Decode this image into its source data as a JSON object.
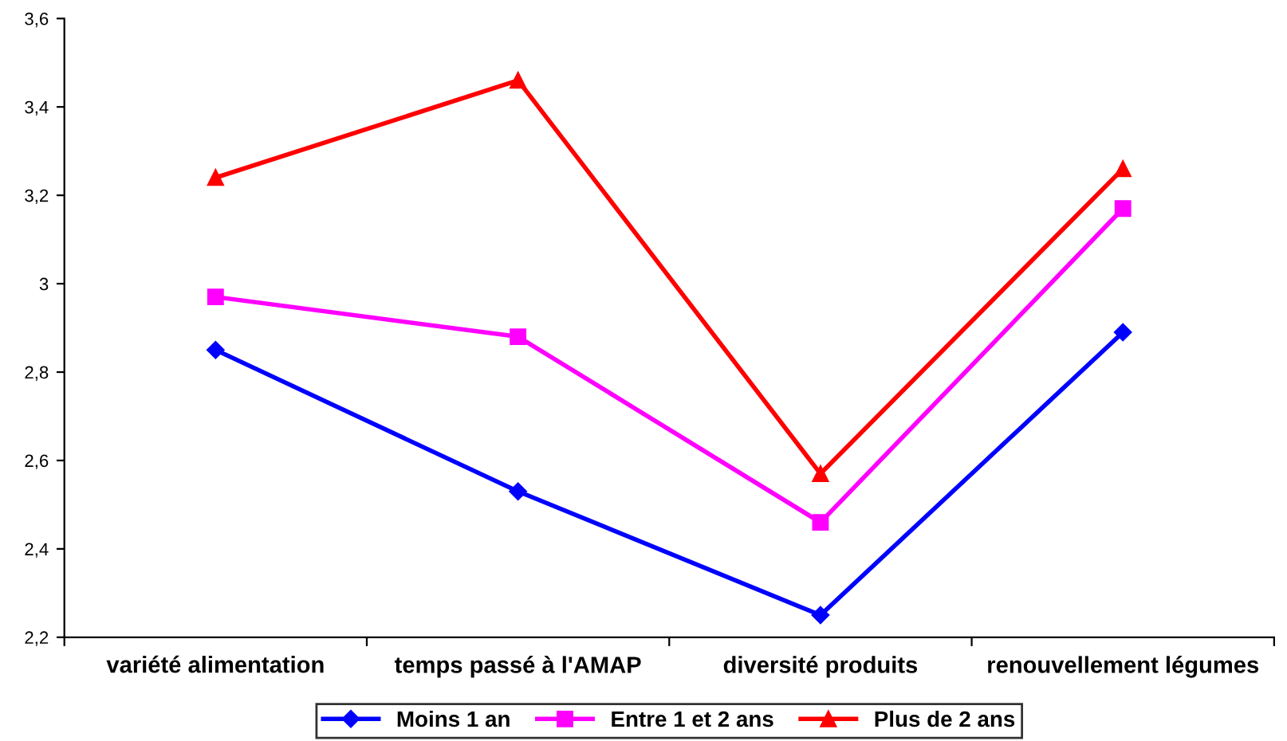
{
  "chart_data": {
    "type": "line",
    "categories": [
      "variété alimentation",
      "temps passé à l'AMAP",
      "diversité produits",
      "renouvellement légumes"
    ],
    "series": [
      {
        "name": "Moins 1 an",
        "color": "#0000ff",
        "marker": "diamond",
        "values": [
          2.85,
          2.53,
          2.25,
          2.89
        ]
      },
      {
        "name": "Entre 1 et 2 ans",
        "color": "#ff00ff",
        "marker": "square",
        "values": [
          2.97,
          2.88,
          2.46,
          3.17
        ]
      },
      {
        "name": "Plus de 2 ans",
        "color": "#ff0000",
        "marker": "triangle",
        "values": [
          3.24,
          3.46,
          2.57,
          3.26
        ]
      }
    ],
    "ylim": [
      2.2,
      3.6
    ],
    "yticks": [
      {
        "value": 2.2,
        "label": "2,2"
      },
      {
        "value": 2.4,
        "label": "2,4"
      },
      {
        "value": 2.6,
        "label": "2,6"
      },
      {
        "value": 2.8,
        "label": "2,8"
      },
      3,
      {
        "value": 3.2,
        "label": "3,2"
      },
      {
        "value": 3.4,
        "label": "3,4"
      },
      {
        "value": 3.6,
        "label": "3,6"
      }
    ],
    "legend": "bottom",
    "grid": false,
    "line_style": "solid"
  }
}
